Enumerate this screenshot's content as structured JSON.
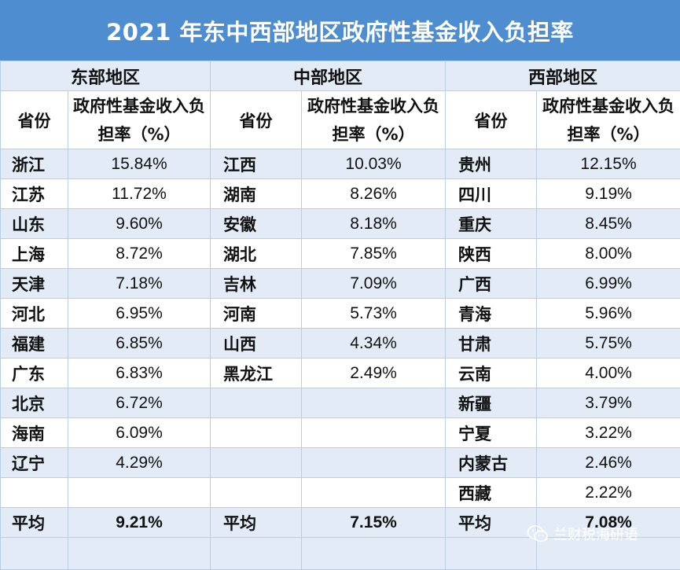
{
  "title": "2021 年东中西部地区政府性基金收入负担率",
  "regions": [
    "东部地区",
    "中部地区",
    "西部地区"
  ],
  "col_province": "省份",
  "col_rate": "政府性基金收入负担率（%）",
  "rows": [
    {
      "e_p": "浙江",
      "e_v": "15.84%",
      "m_p": "江西",
      "m_v": "10.03%",
      "w_p": "贵州",
      "w_v": "12.15%"
    },
    {
      "e_p": "江苏",
      "e_v": "11.72%",
      "m_p": "湖南",
      "m_v": "8.26%",
      "w_p": "四川",
      "w_v": "9.19%"
    },
    {
      "e_p": "山东",
      "e_v": "9.60%",
      "m_p": "安徽",
      "m_v": "8.18%",
      "w_p": "重庆",
      "w_v": "8.45%"
    },
    {
      "e_p": "上海",
      "e_v": "8.72%",
      "m_p": "湖北",
      "m_v": "7.85%",
      "w_p": "陕西",
      "w_v": "8.00%"
    },
    {
      "e_p": "天津",
      "e_v": "7.18%",
      "m_p": "吉林",
      "m_v": "7.09%",
      "w_p": "广西",
      "w_v": "6.99%"
    },
    {
      "e_p": "河北",
      "e_v": "6.95%",
      "m_p": "河南",
      "m_v": "5.73%",
      "w_p": "青海",
      "w_v": "5.96%"
    },
    {
      "e_p": "福建",
      "e_v": "6.85%",
      "m_p": "山西",
      "m_v": "4.34%",
      "w_p": "甘肃",
      "w_v": "5.75%"
    },
    {
      "e_p": "广东",
      "e_v": "6.83%",
      "m_p": "黑龙江",
      "m_v": "2.49%",
      "w_p": "云南",
      "w_v": "4.00%"
    },
    {
      "e_p": "北京",
      "e_v": "6.72%",
      "m_p": "",
      "m_v": "",
      "w_p": "新疆",
      "w_v": "3.79%"
    },
    {
      "e_p": "海南",
      "e_v": "6.09%",
      "m_p": "",
      "m_v": "",
      "w_p": "宁夏",
      "w_v": "3.22%"
    },
    {
      "e_p": "辽宁",
      "e_v": "4.29%",
      "m_p": "",
      "m_v": "",
      "w_p": "内蒙古",
      "w_v": "2.46%"
    },
    {
      "e_p": "",
      "e_v": "",
      "m_p": "",
      "m_v": "",
      "w_p": "西藏",
      "w_v": "2.22%"
    }
  ],
  "average": {
    "label": "平均",
    "east": "9.21%",
    "mid": "7.15%",
    "west": "7.08%"
  },
  "watermark": "兰财税海研语",
  "colors": {
    "header_bg": "#4e8ed0",
    "band_bg": "#e3ecf6",
    "border": "#b9cde3"
  }
}
